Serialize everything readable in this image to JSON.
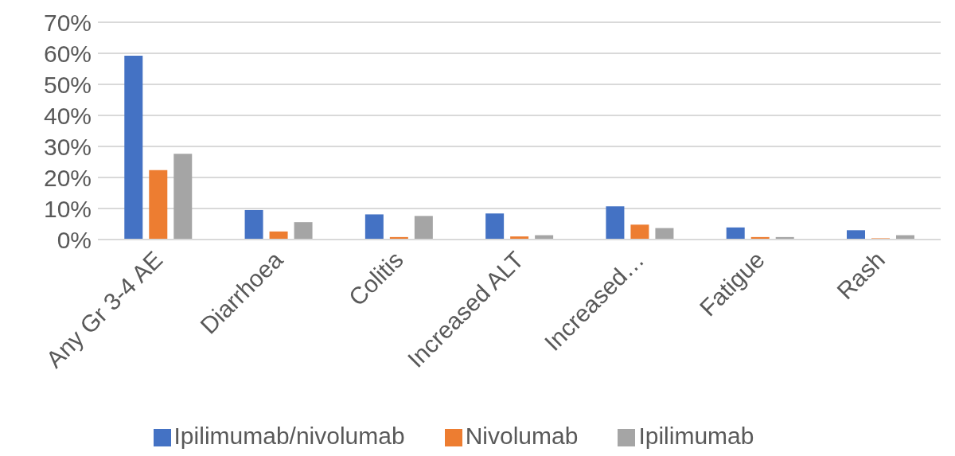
{
  "chart_data": {
    "type": "bar",
    "categories": [
      "Any Gr 3-4 AE",
      "Diarrhoea",
      "Colitis",
      "Increased ALT",
      "Increased…",
      "Fatigue",
      "Rash"
    ],
    "series": [
      {
        "name": "Ipilimumab/nivolumab",
        "color": "#4472c4",
        "values": [
          59.2,
          9.5,
          8.1,
          8.4,
          10.7,
          3.9,
          3.0
        ]
      },
      {
        "name": "Nivolumab",
        "color": "#ed7d31",
        "values": [
          22.4,
          2.6,
          0.8,
          1.0,
          4.8,
          0.8,
          0.4
        ]
      },
      {
        "name": "Ipilimumab",
        "color": "#a5a5a5",
        "values": [
          27.6,
          5.6,
          7.6,
          1.4,
          3.7,
          0.8,
          1.4
        ]
      }
    ],
    "ylim": [
      0,
      70
    ],
    "yticks": [
      {
        "value": 0,
        "label": "0%"
      },
      {
        "value": 10,
        "label": "10%"
      },
      {
        "value": 20,
        "label": "20%"
      },
      {
        "value": 30,
        "label": "30%"
      },
      {
        "value": 40,
        "label": "40%"
      },
      {
        "value": 50,
        "label": "50%"
      },
      {
        "value": 60,
        "label": "60%"
      },
      {
        "value": 70,
        "label": "70%"
      }
    ],
    "grid": "y",
    "legend": "bottom"
  }
}
